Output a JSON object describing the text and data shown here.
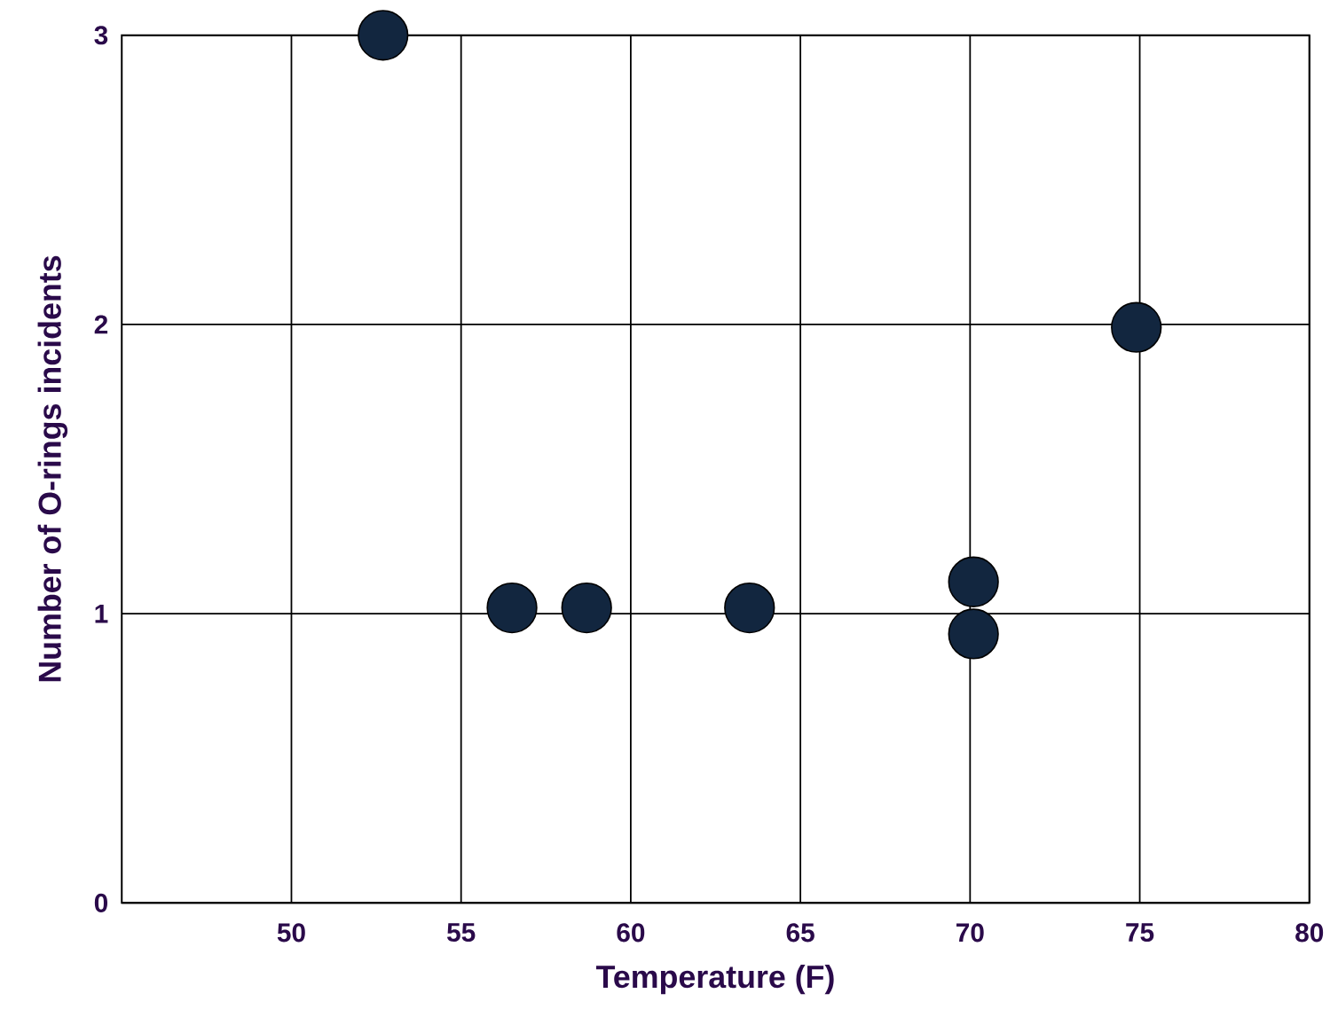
{
  "chart_data": {
    "type": "scatter",
    "xlabel": "Temperature (F)",
    "ylabel": "Number of O-rings incidents",
    "x": [
      52.7,
      56.5,
      58.7,
      63.5,
      70.1,
      70.1,
      74.9
    ],
    "values": [
      3.0,
      1.02,
      1.02,
      1.02,
      1.11,
      0.93,
      1.99
    ],
    "color": "#12263f",
    "grid": true,
    "xlim": [
      45,
      80
    ],
    "xticks": [
      50,
      55,
      60,
      65,
      70,
      75,
      80
    ],
    "ylim": [
      0,
      3
    ],
    "yticks": [
      0,
      1,
      2,
      3
    ]
  }
}
